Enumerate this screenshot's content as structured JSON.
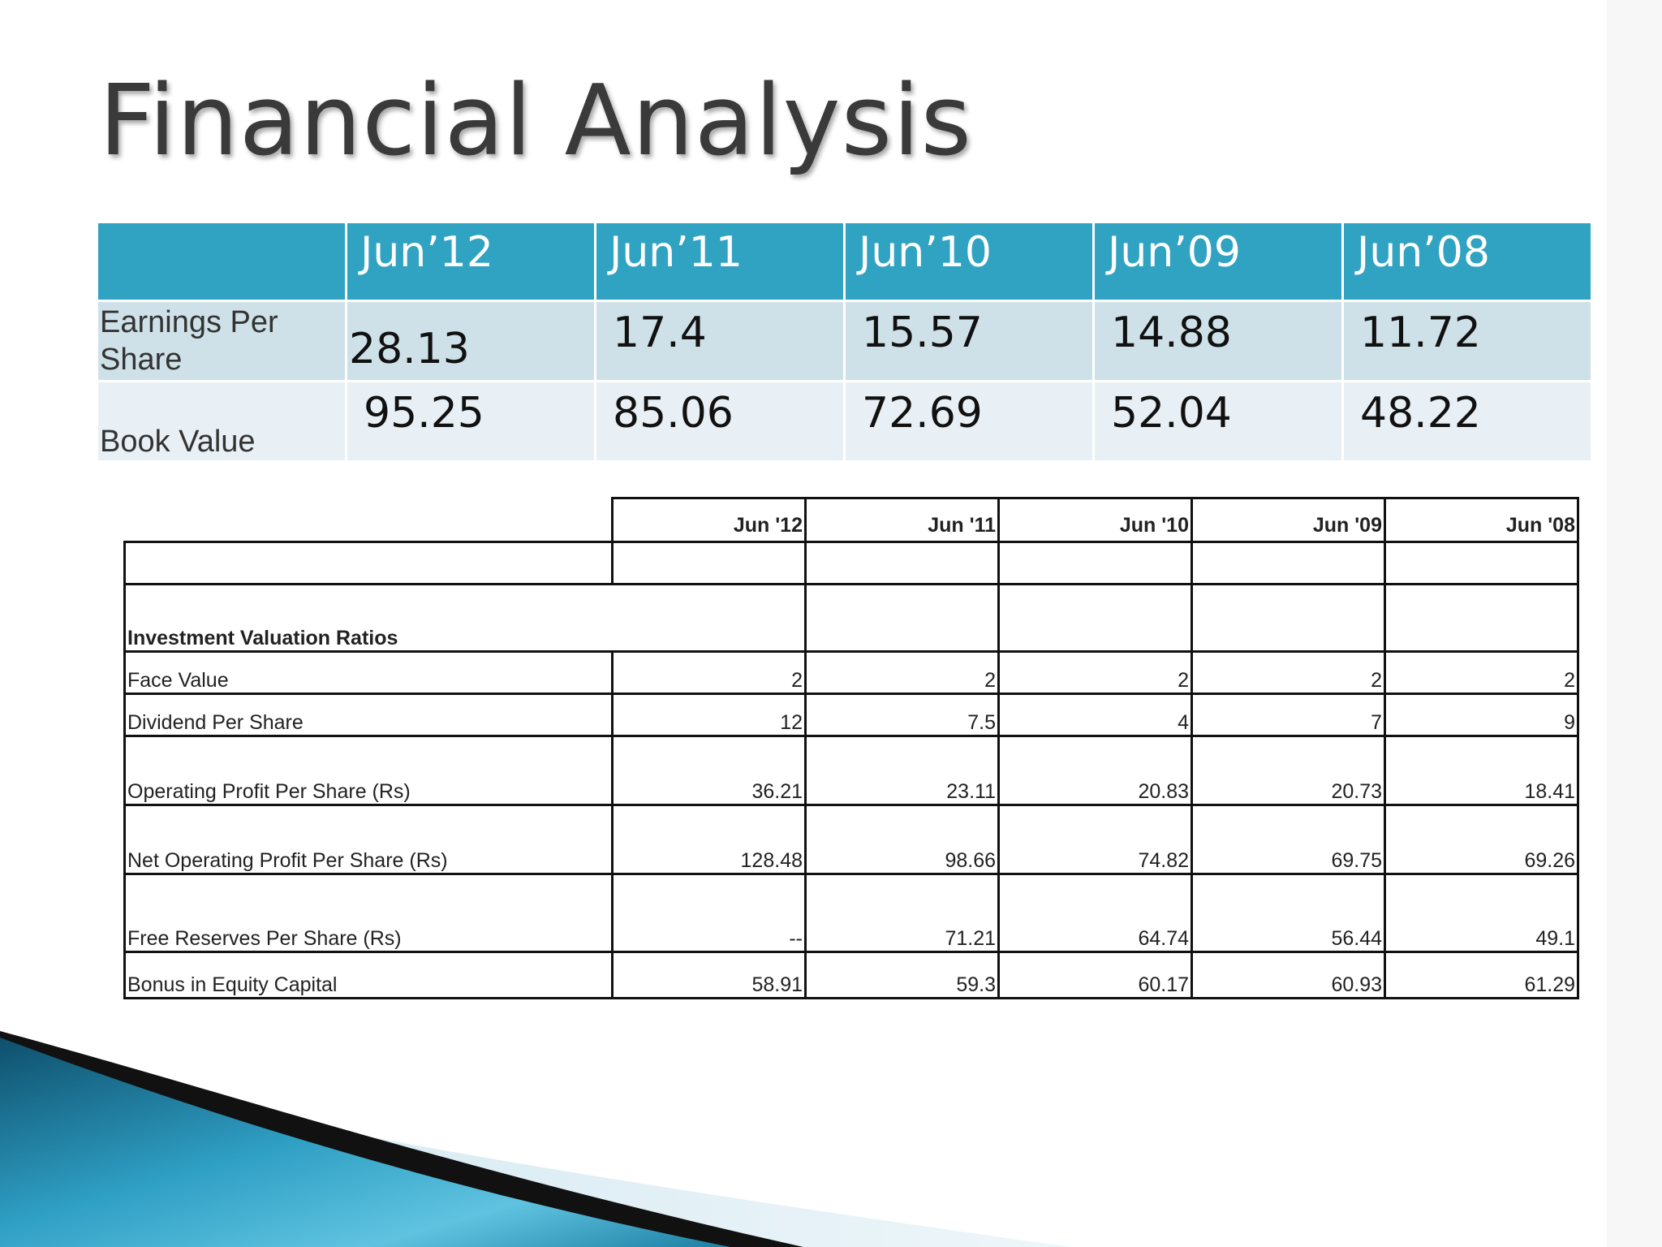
{
  "title": "Financial Analysis",
  "summary": {
    "headers": [
      "Jun’12",
      "Jun’11",
      "Jun’10",
      "Jun’09",
      "Jun’08"
    ],
    "rows": [
      {
        "label": "Earnings Per Share",
        "values": [
          "28.13",
          "17.4",
          "15.57",
          "14.88",
          "11.72"
        ]
      },
      {
        "label": "Book Value",
        "values": [
          "95.25",
          "85.06",
          "72.69",
          "52.04",
          "48.22"
        ]
      }
    ]
  },
  "ratios": {
    "headers": [
      "Jun '12",
      "Jun '11",
      "Jun '10",
      "Jun '09",
      "Jun '08"
    ],
    "section": "Investment Valuation Ratios",
    "rows": [
      {
        "label": "Face Value",
        "values": [
          "2",
          "2",
          "2",
          "2",
          "2"
        ]
      },
      {
        "label": "Dividend Per Share",
        "values": [
          "12",
          "7.5",
          "4",
          "7",
          "9"
        ]
      },
      {
        "label": "Operating Profit Per Share (Rs)",
        "values": [
          "36.21",
          "23.11",
          "20.83",
          "20.73",
          "18.41"
        ]
      },
      {
        "label": "Net Operating Profit Per Share (Rs)",
        "values": [
          "128.48",
          "98.66",
          "74.82",
          "69.75",
          "69.26"
        ]
      },
      {
        "label": "Free Reserves Per Share (Rs)",
        "values": [
          "--",
          "71.21",
          "64.74",
          "56.44",
          "49.1"
        ]
      },
      {
        "label": "Bonus in Equity Capital",
        "values": [
          "58.91",
          "59.3",
          "60.17",
          "60.93",
          "61.29"
        ]
      }
    ]
  },
  "colors": {
    "header_fill": "#31a3c2",
    "row1_fill": "#cfe1e8",
    "row2_fill": "#e8f0f5",
    "accent_dark": "#0e4f6c"
  }
}
